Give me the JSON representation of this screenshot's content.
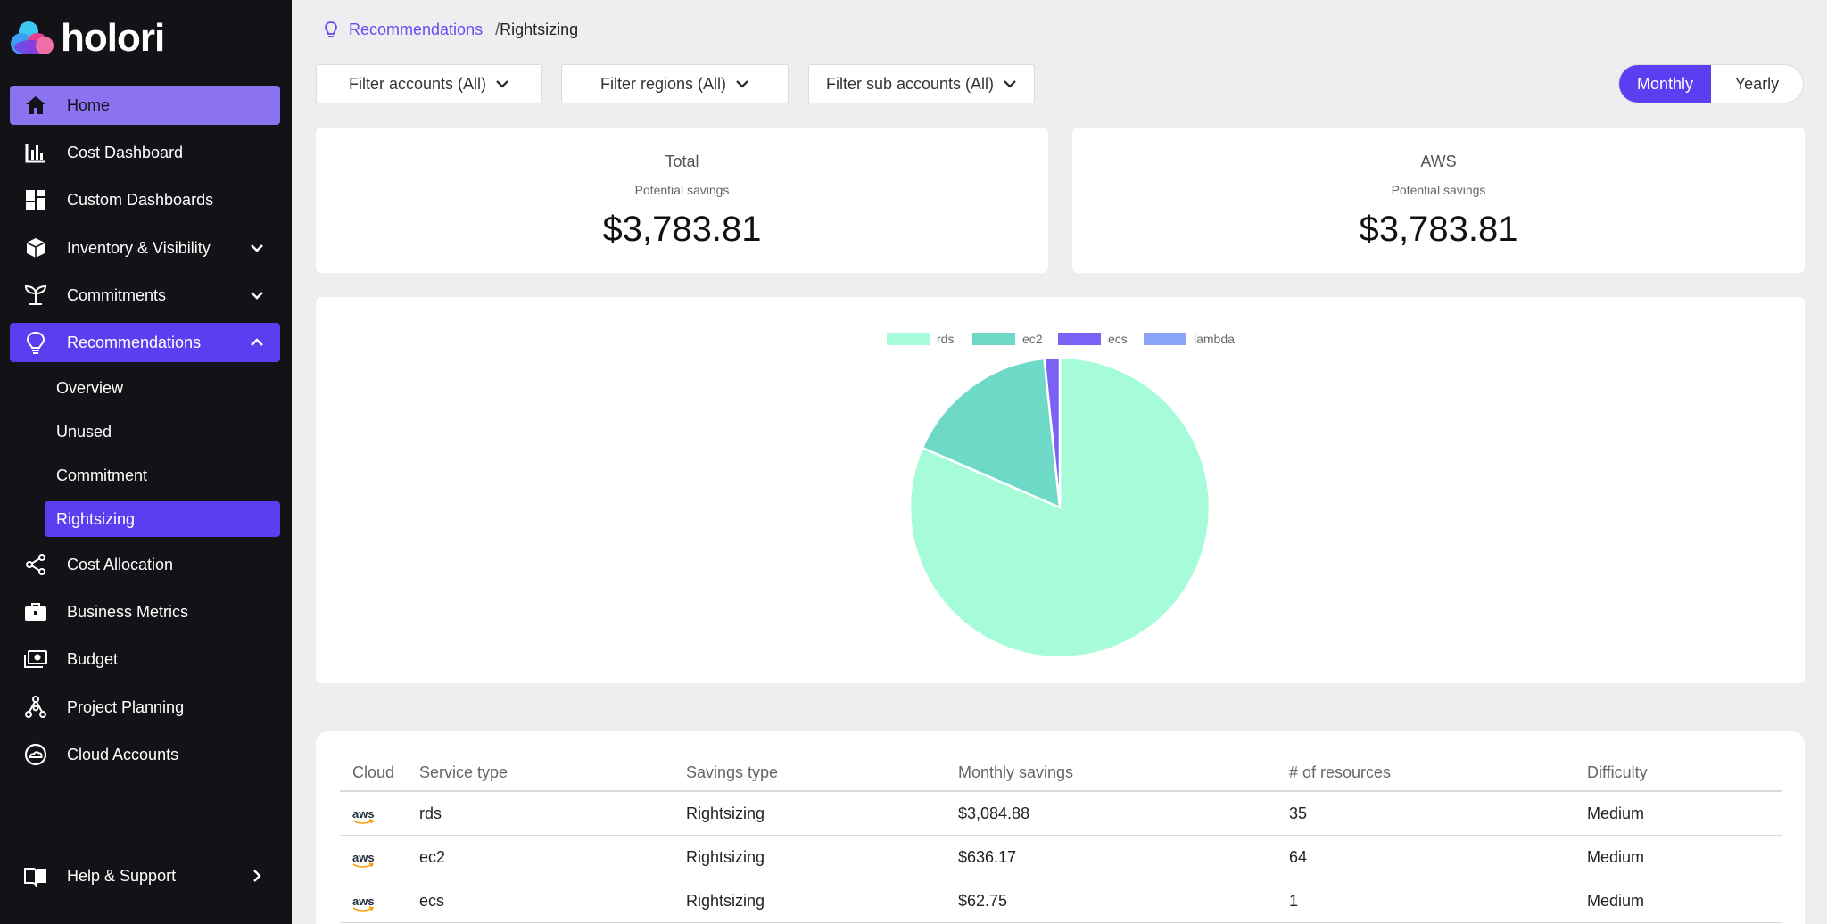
{
  "brand": {
    "name": "holori"
  },
  "sidebar": {
    "items": [
      {
        "label": "Home",
        "icon": "home-icon"
      },
      {
        "label": "Cost Dashboard",
        "icon": "bar-chart-icon"
      },
      {
        "label": "Custom Dashboards",
        "icon": "dashboard-grid-icon"
      },
      {
        "label": "Inventory & Visibility",
        "icon": "cube-icon"
      },
      {
        "label": "Commitments",
        "icon": "plant-icon"
      },
      {
        "label": "Recommendations",
        "icon": "lightbulb-icon"
      },
      {
        "label": "Cost Allocation",
        "icon": "share-icon"
      },
      {
        "label": "Business Metrics",
        "icon": "briefcase-icon"
      },
      {
        "label": "Budget",
        "icon": "money-icon"
      },
      {
        "label": "Project Planning",
        "icon": "hierarchy-icon"
      },
      {
        "label": "Cloud Accounts",
        "icon": "cloud-circle-icon"
      }
    ],
    "sub_items": [
      "Overview",
      "Unused",
      "Commitment",
      "Rightsizing"
    ],
    "help": {
      "label": "Help & Support",
      "icon": "book-icon"
    }
  },
  "breadcrumb": {
    "parent": "Recommendations",
    "separator": "/",
    "current": "Rightsizing"
  },
  "filters": {
    "accounts": "Filter accounts (All)",
    "regions": "Filter regions (All)",
    "sub_accounts": "Filter sub accounts (All)"
  },
  "period_toggle": {
    "monthly": "Monthly",
    "yearly": "Yearly",
    "selected": "Monthly"
  },
  "summary": [
    {
      "title": "Total",
      "subtitle": "Potential savings",
      "value": "$3,783.81"
    },
    {
      "title": "AWS",
      "subtitle": "Potential savings",
      "value": "$3,783.81"
    }
  ],
  "chart_data": {
    "type": "pie",
    "labels": [
      "rds",
      "ec2",
      "ecs",
      "lambda"
    ],
    "values": [
      3084.88,
      636.17,
      62.75,
      0
    ],
    "colors": [
      "#a6fcd9",
      "#6fd9c7",
      "#7b61f5",
      "#8aa4f7"
    ],
    "legend": "top"
  },
  "table": {
    "headers": [
      "Cloud",
      "Service type",
      "Savings type",
      "Monthly savings",
      "# of resources",
      "Difficulty"
    ],
    "cloud_label": "aws",
    "rows": [
      [
        "rds",
        "Rightsizing",
        "$3,084.88",
        "35",
        "Medium"
      ],
      [
        "ec2",
        "Rightsizing",
        "$636.17",
        "64",
        "Medium"
      ],
      [
        "ecs",
        "Rightsizing",
        "$62.75",
        "1",
        "Medium"
      ]
    ]
  }
}
